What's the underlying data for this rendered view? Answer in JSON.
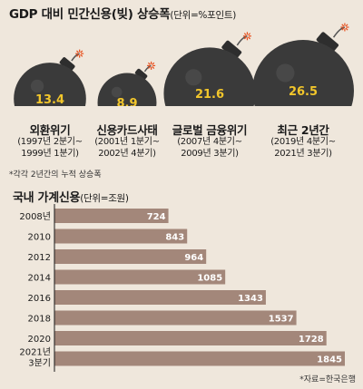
{
  "top_chart": {
    "title": "GDP 대비 민간신용(빚) 상승폭",
    "unit": "(단위=%포인트)",
    "note": "*각각 2년간의 누적 상승폭"
  },
  "bottom_chart": {
    "title": "국내 가계신용",
    "unit": "(단위=조원)",
    "source": "*자료=한국은행"
  },
  "colors": {
    "background": "#efe7dc",
    "bomb": "#3a3a3a",
    "bomb_value_text": "#f2c62b",
    "bar": "#a3877a",
    "bar_value_text": "#ffffff"
  },
  "chart_data": [
    {
      "type": "bubble",
      "categories": [
        "외환위기",
        "신용카드사태",
        "글로벌 금융위기",
        "최근 2년간"
      ],
      "periods": [
        "(1997년 2분기~ 1999년 1분기)",
        "(2001년 1분기~ 2002년 4분기)",
        "(2007년 4분기~ 2009년 3분기)",
        "(2019년 4분기~ 2021년 3분기)"
      ],
      "values": [
        13.4,
        8.9,
        21.6,
        26.5
      ],
      "value_labels": [
        "13.4",
        "8.9",
        "21.6",
        "26.5"
      ],
      "icon": "bomb-icon"
    },
    {
      "type": "bar",
      "orientation": "horizontal",
      "categories": [
        "2008년",
        "2010",
        "2012",
        "2014",
        "2016",
        "2018",
        "2020",
        "2021년 3분기"
      ],
      "values": [
        724,
        843,
        964,
        1085,
        1343,
        1537,
        1728,
        1845
      ],
      "xlim": [
        0,
        1845
      ]
    }
  ]
}
